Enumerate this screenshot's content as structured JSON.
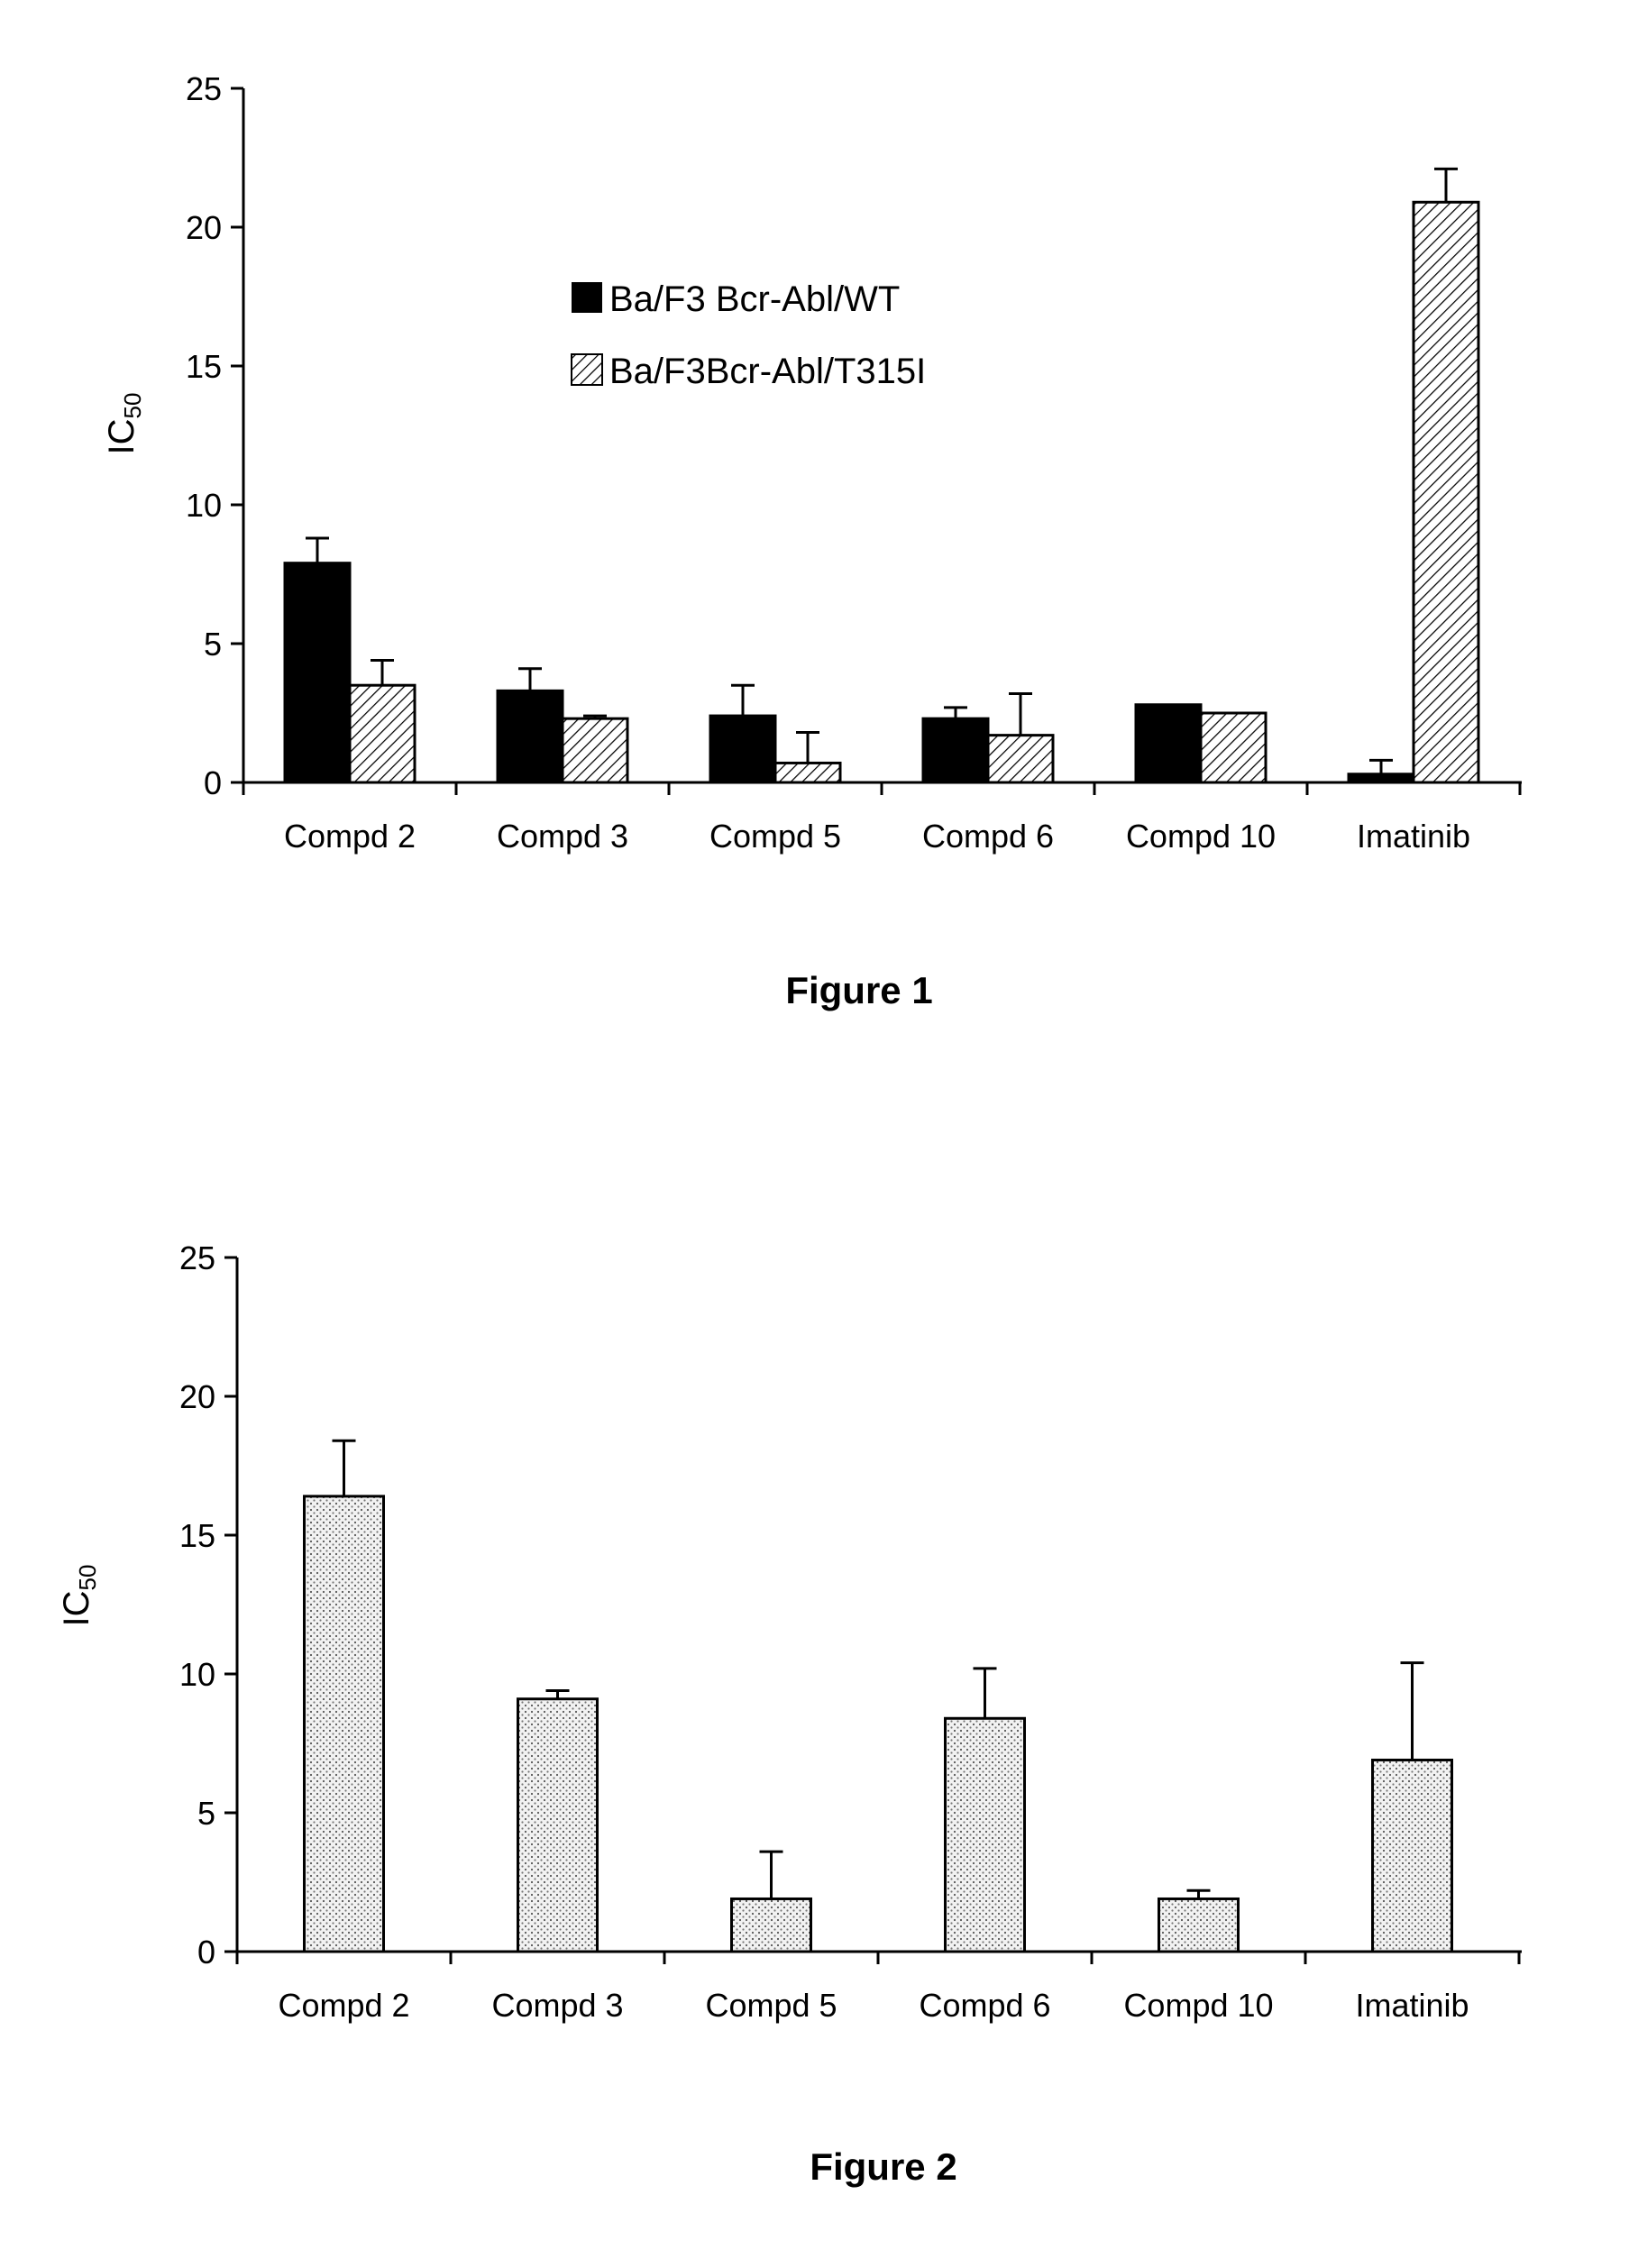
{
  "chart_data": [
    {
      "type": "bar",
      "caption": "Figure 1",
      "ylabel": "IC",
      "ylabel_subscript": "50",
      "ylim": [
        0,
        25
      ],
      "yticks": [
        0,
        5,
        10,
        15,
        20,
        25
      ],
      "grid": false,
      "legend_position": "upper-center",
      "categories": [
        "Compd 2",
        "Compd 3",
        "Compd 5",
        "Compd 6",
        "Compd 10",
        "Imatinib"
      ],
      "series": [
        {
          "name": "Ba/F3 Bcr-Abl/WT",
          "fill": "solid",
          "color": "#000000",
          "values": [
            7.9,
            3.3,
            2.4,
            2.3,
            2.8,
            0.3
          ],
          "errors": [
            0.9,
            0.8,
            1.1,
            0.4,
            0,
            0.5
          ]
        },
        {
          "name": "Ba/F3Bcr-Abl/T315I",
          "fill": "hatch",
          "color": "#000000",
          "values": [
            3.5,
            2.3,
            0.7,
            1.7,
            2.5,
            20.9
          ],
          "errors": [
            0.9,
            0.1,
            1.1,
            1.5,
            0,
            1.2
          ]
        }
      ]
    },
    {
      "type": "bar",
      "caption": "Figure 2",
      "ylabel": "IC",
      "ylabel_subscript": "50",
      "ylim": [
        0,
        25
      ],
      "yticks": [
        0,
        5,
        10,
        15,
        20,
        25
      ],
      "grid": false,
      "categories": [
        "Compd 2",
        "Compd 3",
        "Compd 5",
        "Compd 6",
        "Compd 10",
        "Imatinib"
      ],
      "series": [
        {
          "fill": "stipple",
          "color": "#000000",
          "values": [
            16.4,
            9.1,
            1.9,
            8.4,
            1.9,
            6.9
          ],
          "errors": [
            2.0,
            0.3,
            1.7,
            1.8,
            0.3,
            3.5
          ]
        }
      ]
    }
  ]
}
